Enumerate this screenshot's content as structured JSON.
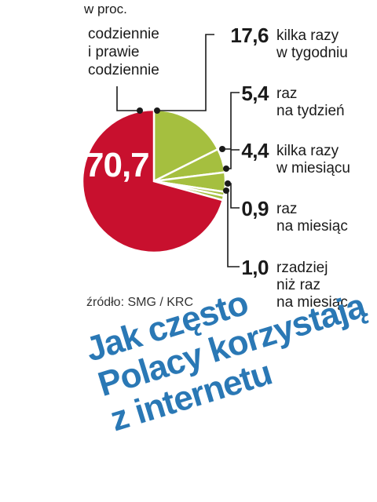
{
  "unit_label": "w proc.",
  "chart_data": {
    "type": "pie",
    "title": "Jak często Polacy korzystają z internetu",
    "unit": "w proc.",
    "slices": [
      {
        "label": "codziennie i prawie codziennie",
        "value_text": "70,7",
        "value": 70.7,
        "color": "#c8102e"
      },
      {
        "label": "kilka razy w tygodniu",
        "value_text": "17,6",
        "value": 17.6,
        "color": "#a5bf3f"
      },
      {
        "label": "raz na tydzień",
        "value_text": "5,4",
        "value": 5.4,
        "color": "#a5bf3f"
      },
      {
        "label": "kilka razy w miesiącu",
        "value_text": "4,4",
        "value": 4.4,
        "color": "#a5bf3f"
      },
      {
        "label": "raz na miesiąc",
        "value_text": "0,9",
        "value": 0.9,
        "color": "#a5bf3f"
      },
      {
        "label": "rzadziej niż raz na miesiąc",
        "value_text": "1,0",
        "value": 1.0,
        "color": "#a5bf3f"
      }
    ]
  },
  "main_label_lines": [
    "codziennie",
    "i prawie",
    "codziennie"
  ],
  "labels": [
    {
      "value": "17,6",
      "lines": [
        "kilka razy",
        "w tygodniu"
      ]
    },
    {
      "value": "5,4",
      "lines": [
        "raz",
        "na tydzień"
      ]
    },
    {
      "value": "4,4",
      "lines": [
        "kilka razy",
        "w miesiącu"
      ]
    },
    {
      "value": "0,9",
      "lines": [
        "raz",
        "na miesiąc"
      ]
    },
    {
      "value": "1,0",
      "lines": [
        "rzadziej",
        "niż raz",
        "na miesiąc"
      ]
    }
  ],
  "source": "źródło: SMG / KRC",
  "headline_lines": [
    "Jak często",
    "Polacy korzystają",
    "z internetu"
  ]
}
